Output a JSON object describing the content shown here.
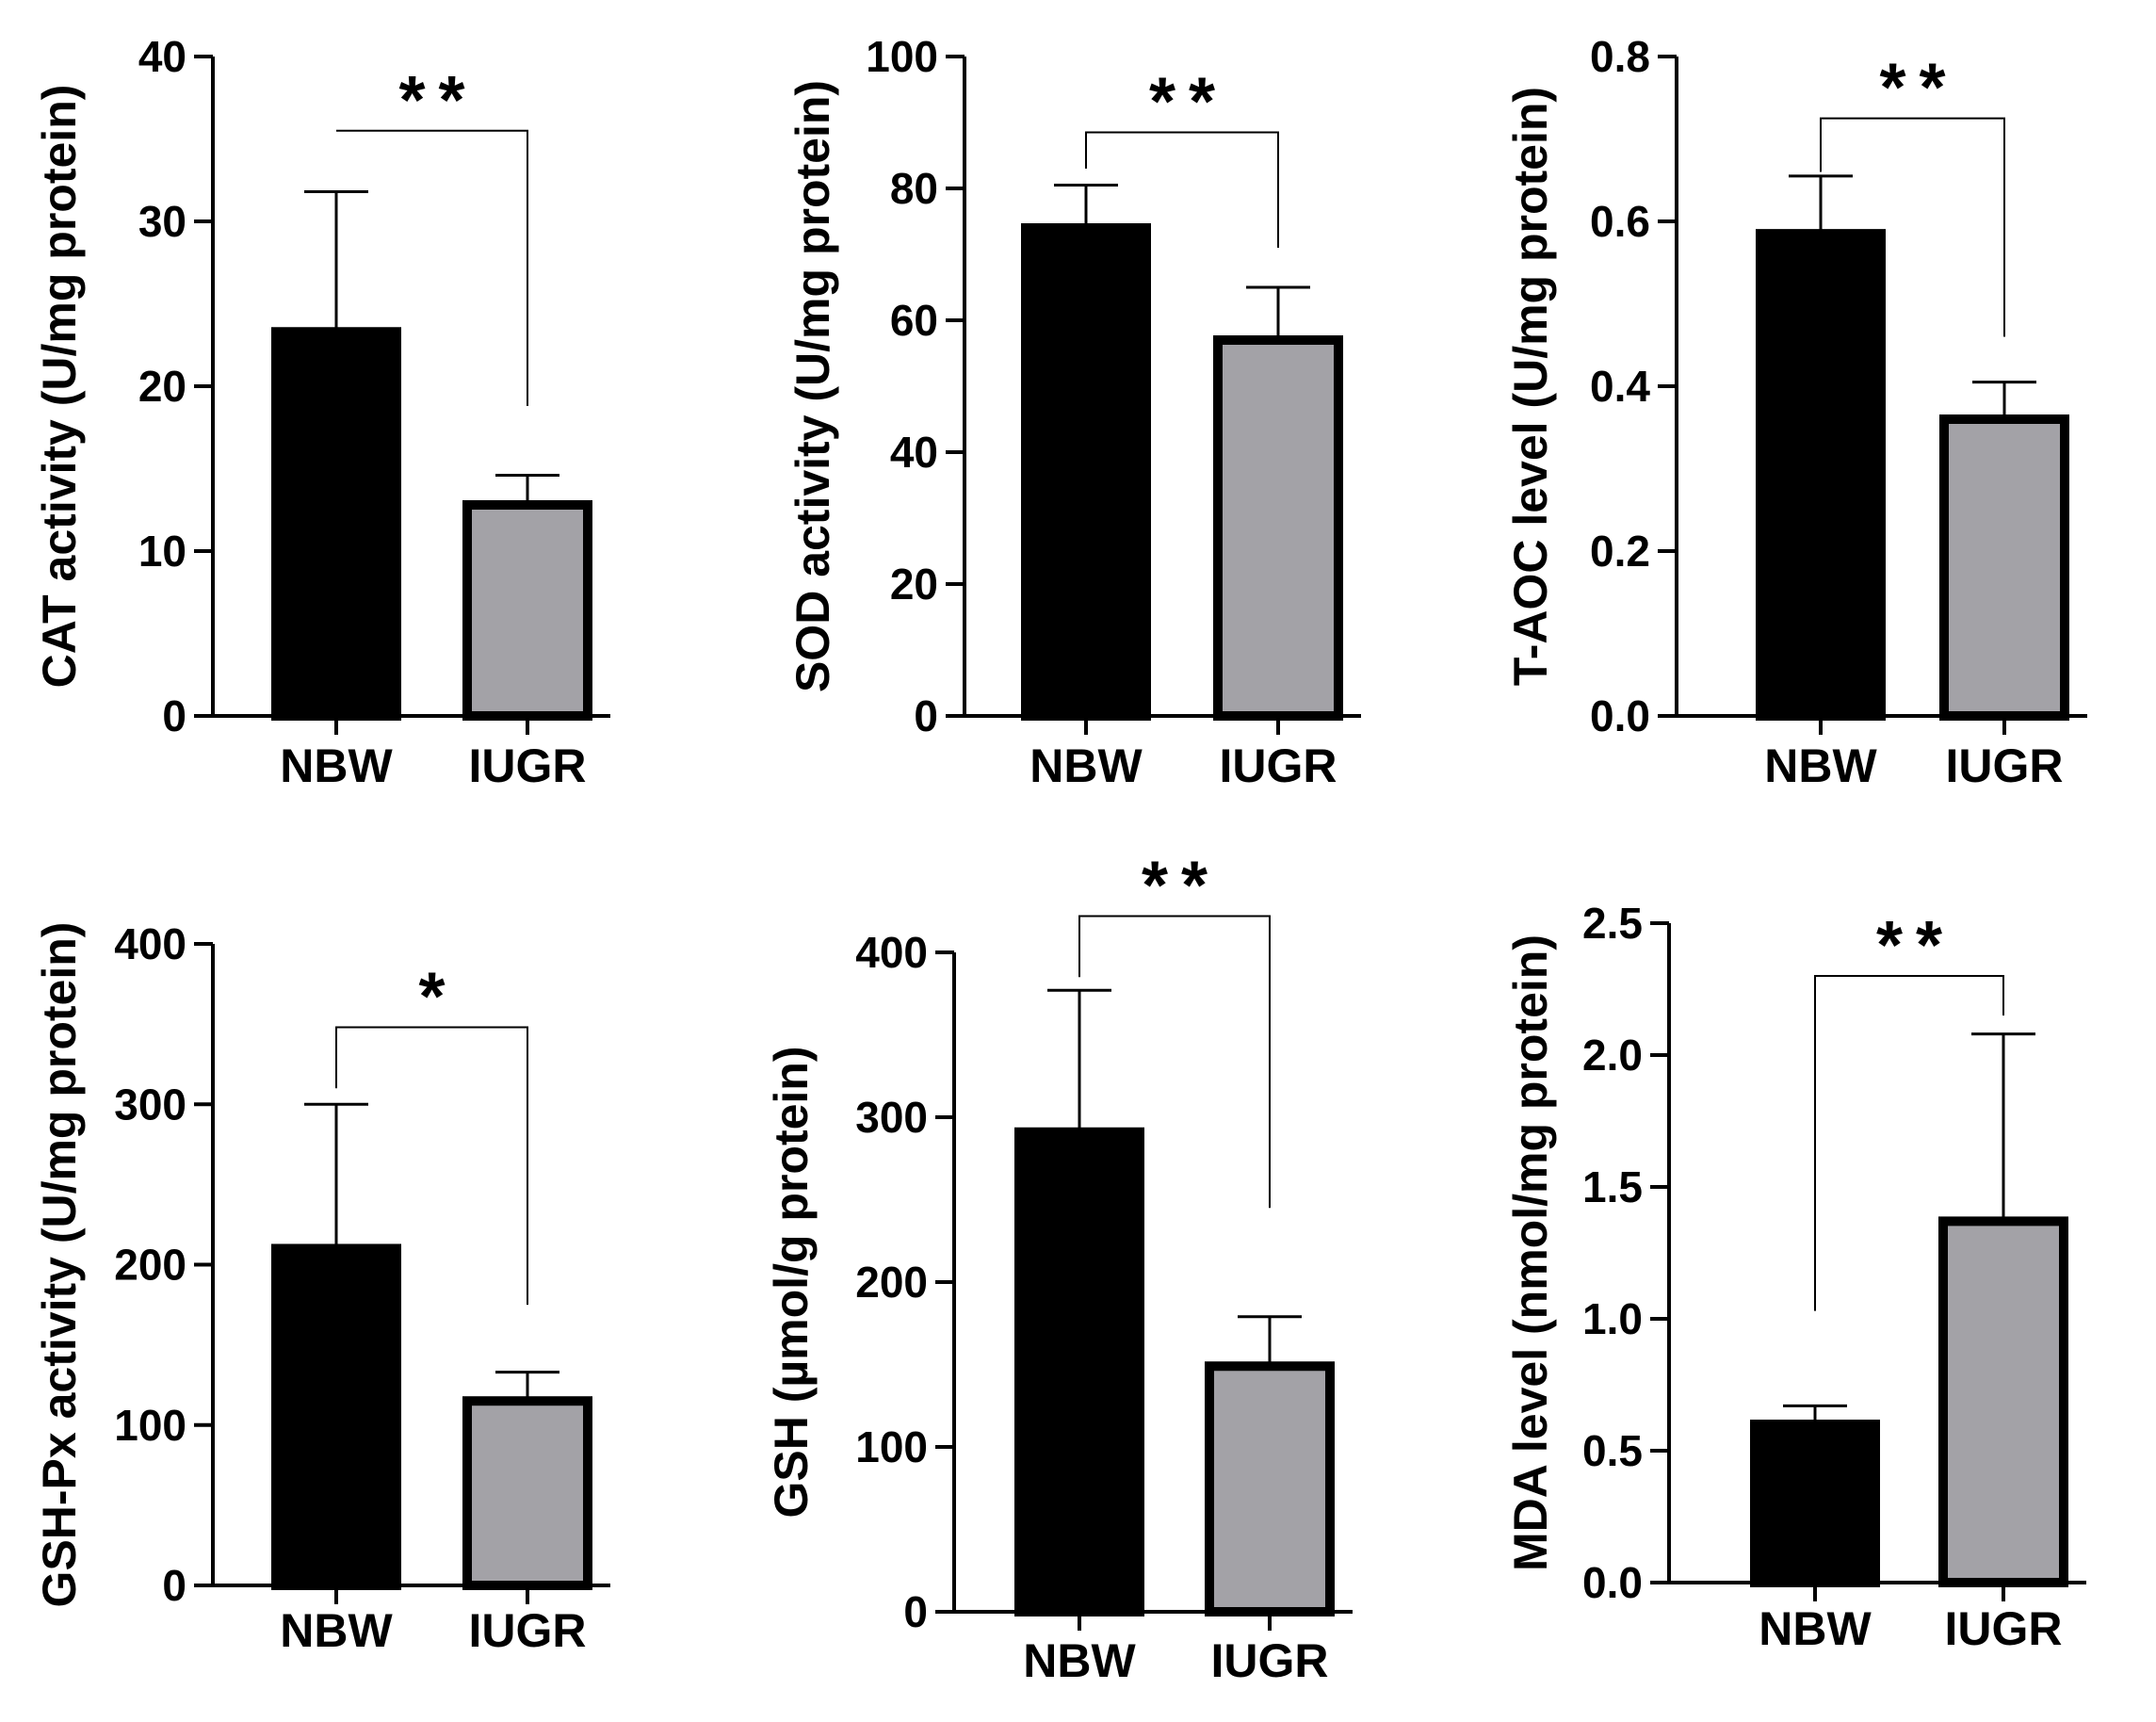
{
  "colors": {
    "nbw": "#000000",
    "iugr": "#a3a2a7",
    "edge": "#000000",
    "background": "#ffffff"
  },
  "chart_data": [
    {
      "type": "bar",
      "title": "",
      "xlabel": "",
      "ylabel": "CAT activity (U/mg protein)",
      "ylim": [
        0,
        40
      ],
      "yticks": [
        0,
        10,
        20,
        30,
        40
      ],
      "ytick_labels": [
        "0",
        "10",
        "20",
        "30",
        "40"
      ],
      "categories": [
        "NBW",
        "IUGR"
      ],
      "values": [
        23.3,
        12.8
      ],
      "errors": [
        8.5,
        1.8
      ],
      "significance": {
        "label": "**",
        "left_y": 35.5,
        "right_y": 18.8,
        "top_y": 35.5
      }
    },
    {
      "type": "bar",
      "title": "",
      "xlabel": "",
      "ylabel": "SOD activity (U/mg protein)",
      "ylim": [
        0,
        100
      ],
      "yticks": [
        0,
        20,
        40,
        60,
        80,
        100
      ],
      "ytick_labels": [
        "0",
        "20",
        "40",
        "60",
        "80",
        "100"
      ],
      "categories": [
        "NBW",
        "IUGR"
      ],
      "values": [
        74,
        57
      ],
      "errors": [
        6.5,
        8
      ],
      "significance": {
        "label": "**",
        "left_y": 83,
        "right_y": 71,
        "top_y": 88.5
      }
    },
    {
      "type": "bar",
      "title": "",
      "xlabel": "",
      "ylabel": "T-AOC level (U/mg protein)",
      "ylim": [
        0,
        0.8
      ],
      "yticks": [
        0,
        0.2,
        0.4,
        0.6,
        0.8
      ],
      "ytick_labels": [
        "0.0",
        "0.2",
        "0.4",
        "0.6",
        "0.8"
      ],
      "categories": [
        "NBW",
        "IUGR"
      ],
      "values": [
        0.585,
        0.36
      ],
      "errors": [
        0.07,
        0.045
      ],
      "significance": {
        "label": "**",
        "left_y": 0.66,
        "right_y": 0.46,
        "top_y": 0.725
      }
    },
    {
      "type": "bar",
      "title": "",
      "xlabel": "",
      "ylabel": "GSH-Px activity (U/mg protein)",
      "ylim": [
        0,
        400
      ],
      "yticks": [
        0,
        100,
        200,
        300,
        400
      ],
      "ytick_labels": [
        "0",
        "100",
        "200",
        "300",
        "400"
      ],
      "categories": [
        "NBW",
        "IUGR"
      ],
      "values": [
        210,
        115
      ],
      "errors": [
        90,
        18
      ],
      "significance": {
        "label": "*",
        "left_y": 310,
        "right_y": 175,
        "top_y": 348
      }
    },
    {
      "type": "bar",
      "title": "",
      "xlabel": "",
      "ylabel": "GSH (µmol/g protein)",
      "ylim": [
        0,
        400
      ],
      "yticks": [
        0,
        100,
        200,
        300,
        400
      ],
      "ytick_labels": [
        "0",
        "100",
        "200",
        "300",
        "400"
      ],
      "categories": [
        "NBW",
        "IUGR"
      ],
      "values": [
        291,
        149
      ],
      "errors": [
        86,
        30
      ],
      "significance": {
        "label": "**",
        "left_y": 385,
        "right_y": 245,
        "top_y": 422
      }
    },
    {
      "type": "bar",
      "title": "",
      "xlabel": "",
      "ylabel": "MDA level (nmol/mg protein)",
      "ylim": [
        0,
        2.5
      ],
      "yticks": [
        0,
        0.5,
        1.0,
        1.5,
        2.0,
        2.5
      ],
      "ytick_labels": [
        "0.0",
        "0.5",
        "1.0",
        "1.5",
        "2.0",
        "2.5"
      ],
      "categories": [
        "NBW",
        "IUGR"
      ],
      "values": [
        0.6,
        1.37
      ],
      "errors": [
        0.07,
        0.71
      ],
      "significance": {
        "label": "**",
        "left_y": 1.03,
        "right_y": 2.15,
        "top_y": 2.3
      }
    }
  ]
}
